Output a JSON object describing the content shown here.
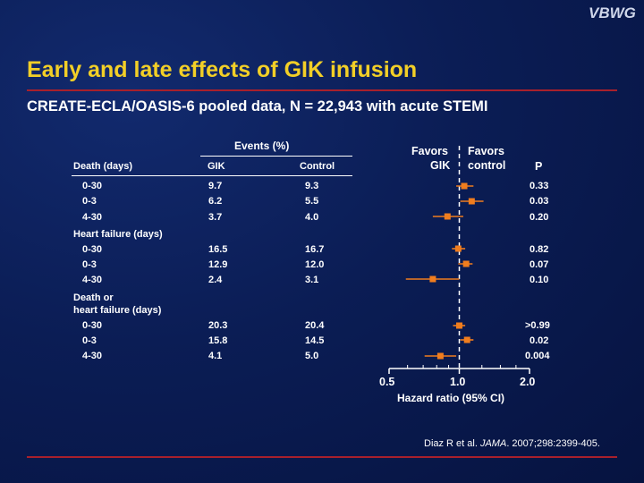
{
  "logo": "VBWG",
  "title": "Early and late effects of GIK infusion",
  "subtitle": "CREATE-ECLA/OASIS-6 pooled data, N = 22,943 with acute STEMI",
  "events_header": "Events (%)",
  "favors_left": [
    "Favors",
    "GIK"
  ],
  "favors_right": [
    "Favors",
    "control"
  ],
  "citation": {
    "pre": "Diaz R et al. ",
    "journal": "JAMA",
    "post": ". 2007;298:2399-405."
  },
  "colors": {
    "title": "#f2cf27",
    "rule": "#a8202c",
    "marker": "#f07d1e",
    "background": "#0b1d55"
  },
  "chart_data": {
    "type": "forest",
    "xlabel": "Hazard ratio (95% CI)",
    "xticks": [
      "0.5",
      "1.0",
      "2.0"
    ],
    "xlim": [
      0.5,
      2.0
    ],
    "log_scale": true,
    "reference_line": 1.0,
    "columns": {
      "label": "Death (days)",
      "gik": "GIK",
      "control": "Control",
      "p": "P"
    },
    "groups": [
      {
        "label": "Death (days)",
        "rows": [
          {
            "period": "0-30",
            "gik": "9.7",
            "control": "9.3",
            "p": "0.33",
            "hr": 1.05,
            "ci": [
              0.97,
              1.15
            ]
          },
          {
            "period": "0-3",
            "gik": "6.2",
            "control": "5.5",
            "p": "0.03",
            "hr": 1.13,
            "ci": [
              1.01,
              1.27
            ]
          },
          {
            "period": "4-30",
            "gik": "3.7",
            "control": "4.0",
            "p": "0.20",
            "hr": 0.89,
            "ci": [
              0.77,
              1.04
            ]
          }
        ]
      },
      {
        "label": "Heart failure (days)",
        "rows": [
          {
            "period": "0-30",
            "gik": "16.5",
            "control": "16.7",
            "p": "0.82",
            "hr": 0.99,
            "ci": [
              0.93,
              1.06
            ]
          },
          {
            "period": "0-3",
            "gik": "12.9",
            "control": "12.0",
            "p": "0.07",
            "hr": 1.07,
            "ci": [
              0.99,
              1.14
            ]
          },
          {
            "period": "4-30",
            "gik": "2.4",
            "control": "3.1",
            "p": "0.10",
            "hr": 0.77,
            "ci": [
              0.59,
              1.0
            ]
          }
        ]
      },
      {
        "label": "Death or\nheart failure (days)",
        "label_lines": [
          "Death or",
          "heart failure (days)"
        ],
        "rows": [
          {
            "period": "0-30",
            "gik": "20.3",
            "control": "20.4",
            "p": ">0.99",
            "hr": 1.0,
            "ci": [
              0.94,
              1.06
            ]
          },
          {
            "period": "0-3",
            "gik": "15.8",
            "control": "14.5",
            "p": "0.02",
            "hr": 1.08,
            "ci": [
              1.01,
              1.15
            ]
          },
          {
            "period": "4-30",
            "gik": "4.1",
            "control": "5.0",
            "p": "0.004",
            "hr": 0.83,
            "ci": [
              0.71,
              0.97
            ]
          }
        ]
      }
    ]
  }
}
